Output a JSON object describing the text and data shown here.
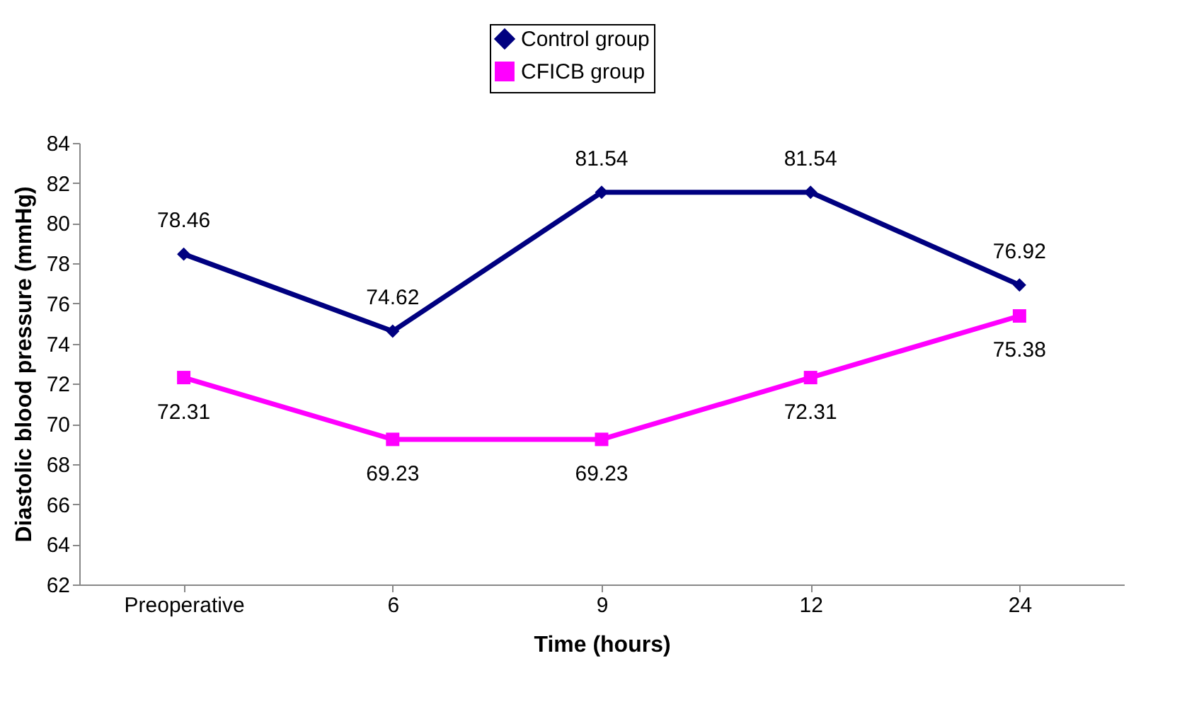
{
  "chart_data": {
    "type": "line",
    "xlabel": "Time (hours)",
    "ylabel": "Diastolic blood pressure (mmHg)",
    "categories": [
      "Preoperative",
      "6",
      "9",
      "12",
      "24"
    ],
    "series": [
      {
        "name": "Control group",
        "color": "#000080",
        "marker": "diamond",
        "values": [
          78.46,
          74.62,
          81.54,
          81.54,
          76.92
        ]
      },
      {
        "name": "CFICB group",
        "color": "#ff00ff",
        "marker": "square",
        "values": [
          72.31,
          69.23,
          69.23,
          72.31,
          75.38
        ]
      }
    ],
    "ylim": [
      62,
      84
    ],
    "yticks": [
      62,
      64,
      66,
      68,
      70,
      72,
      74,
      76,
      78,
      80,
      82,
      84
    ],
    "data_labels": true,
    "legend": "top",
    "grid": false
  }
}
